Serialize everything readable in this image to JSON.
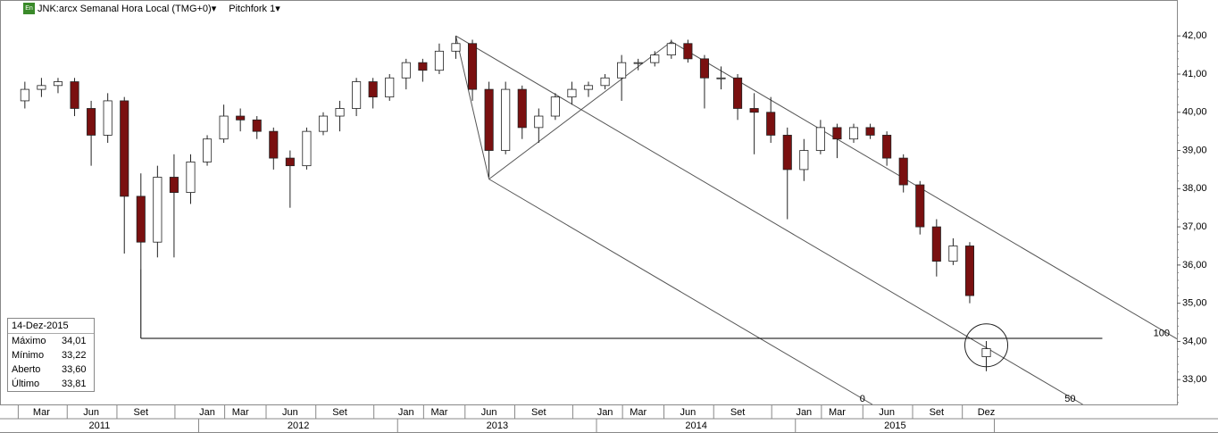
{
  "header": {
    "symbol": "JNK:arcx Semanal Hora Local (TMG+0)▾",
    "study": "Pitchfork 1▾",
    "icon": "En"
  },
  "info_box": {
    "date": "14-Dez-2015",
    "rows": [
      {
        "label": "Máximo",
        "value": "34,01"
      },
      {
        "label": "Mínimo",
        "value": "33,22"
      },
      {
        "label": "Aberto",
        "value": "33,60"
      },
      {
        "label": "Último",
        "value": "33,81"
      }
    ]
  },
  "chart_data": {
    "type": "candlestick",
    "x": [
      "2011-02",
      "2011-03",
      "2011-04",
      "2011-05",
      "2011-06",
      "2011-07",
      "2011-08",
      "2011-09",
      "2011-10",
      "2011-11",
      "2011-12",
      "2012-01",
      "2012-02",
      "2012-03",
      "2012-04",
      "2012-05",
      "2012-06",
      "2012-07",
      "2012-08",
      "2012-09",
      "2012-10",
      "2012-11",
      "2012-12",
      "2013-01",
      "2013-02",
      "2013-03",
      "2013-04",
      "2013-05",
      "2013-06",
      "2013-07",
      "2013-08",
      "2013-09",
      "2013-10",
      "2013-11",
      "2013-12",
      "2014-01",
      "2014-02",
      "2014-03",
      "2014-04",
      "2014-05",
      "2014-06",
      "2014-07",
      "2014-08",
      "2014-09",
      "2014-10",
      "2014-11",
      "2014-12",
      "2015-01",
      "2015-02",
      "2015-03",
      "2015-04",
      "2015-05",
      "2015-06",
      "2015-07",
      "2015-08",
      "2015-09",
      "2015-10",
      "2015-11",
      "2015-12"
    ],
    "open": [
      40.3,
      40.6,
      40.7,
      40.8,
      40.1,
      39.4,
      40.3,
      37.8,
      36.6,
      38.3,
      37.9,
      38.7,
      39.3,
      39.9,
      39.8,
      39.5,
      38.8,
      38.6,
      39.5,
      39.9,
      40.1,
      40.8,
      40.4,
      40.9,
      41.3,
      41.1,
      41.6,
      41.8,
      40.6,
      39.0,
      40.6,
      39.6,
      39.9,
      40.4,
      40.6,
      40.7,
      40.9,
      41.3,
      41.3,
      41.5,
      41.8,
      41.4,
      40.9,
      40.9,
      40.1,
      40.0,
      39.4,
      38.5,
      39.0,
      39.6,
      39.3,
      39.6,
      39.4,
      38.8,
      38.1,
      37.0,
      36.1,
      36.5,
      33.6
    ],
    "high": [
      40.8,
      40.9,
      40.9,
      40.9,
      40.3,
      40.5,
      40.4,
      38.4,
      38.6,
      38.9,
      38.9,
      39.4,
      40.2,
      40.1,
      39.9,
      39.6,
      39.0,
      39.6,
      40.0,
      40.3,
      40.9,
      40.9,
      41.0,
      41.4,
      41.4,
      41.8,
      42.0,
      41.9,
      40.8,
      40.8,
      40.7,
      40.1,
      40.5,
      40.8,
      40.8,
      41.0,
      41.5,
      41.4,
      41.6,
      41.9,
      41.9,
      41.5,
      41.2,
      41.0,
      40.5,
      40.4,
      39.6,
      39.3,
      39.8,
      39.7,
      39.7,
      39.7,
      39.5,
      38.9,
      38.2,
      37.2,
      36.7,
      36.6,
      34.01
    ],
    "low": [
      40.1,
      40.4,
      40.5,
      39.9,
      38.6,
      39.2,
      36.3,
      35.9,
      36.2,
      36.2,
      37.6,
      38.6,
      39.2,
      39.5,
      39.3,
      38.5,
      37.5,
      38.5,
      39.4,
      39.5,
      39.9,
      40.1,
      40.3,
      40.6,
      40.8,
      41.0,
      41.4,
      40.3,
      38.3,
      38.9,
      39.3,
      39.2,
      39.8,
      40.2,
      40.4,
      40.6,
      40.3,
      41.1,
      41.2,
      41.4,
      41.3,
      40.1,
      40.6,
      39.8,
      38.9,
      39.2,
      37.2,
      38.2,
      38.9,
      38.8,
      39.2,
      39.3,
      38.6,
      37.9,
      36.8,
      35.7,
      36.0,
      35.0,
      33.22
    ],
    "close": [
      40.6,
      40.7,
      40.8,
      40.1,
      39.4,
      40.3,
      37.8,
      36.6,
      38.3,
      37.9,
      38.7,
      39.3,
      39.9,
      39.8,
      39.5,
      38.8,
      38.6,
      39.5,
      39.9,
      40.1,
      40.8,
      40.4,
      40.9,
      41.3,
      41.1,
      41.6,
      41.8,
      40.6,
      39.0,
      40.6,
      39.6,
      39.9,
      40.4,
      40.6,
      40.7,
      40.9,
      41.3,
      41.3,
      41.5,
      41.8,
      41.4,
      40.9,
      40.9,
      40.1,
      40.0,
      39.4,
      38.5,
      39.0,
      39.6,
      39.3,
      39.6,
      39.4,
      38.8,
      38.1,
      37.0,
      36.1,
      36.5,
      35.2,
      33.81
    ],
    "up_color": "#ffffff",
    "down_color": "#7a1010",
    "outline_color": "#222222",
    "xlim": [
      "2011-01",
      "2016-12"
    ],
    "ylim": [
      32.35,
      42.94
    ],
    "yticks": [
      {
        "value": 33,
        "label": "33,00"
      },
      {
        "value": 34,
        "label": "34,00"
      },
      {
        "value": 35,
        "label": "35,00"
      },
      {
        "value": 36,
        "label": "36,00"
      },
      {
        "value": 37,
        "label": "37,00"
      },
      {
        "value": 38,
        "label": "38,00"
      },
      {
        "value": 39,
        "label": "39,00"
      },
      {
        "value": 40,
        "label": "40,00"
      },
      {
        "value": 41,
        "label": "41,00"
      },
      {
        "value": 42,
        "label": "42,00"
      }
    ],
    "xticks": [
      {
        "value": "2011-03",
        "label": "Mar"
      },
      {
        "value": "2011-06",
        "label": "Jun"
      },
      {
        "value": "2011-09",
        "label": "Set"
      },
      {
        "value": "2012-01",
        "label": "Jan"
      },
      {
        "value": "2012-03",
        "label": "Mar"
      },
      {
        "value": "2012-06",
        "label": "Jun"
      },
      {
        "value": "2012-09",
        "label": "Set"
      },
      {
        "value": "2013-01",
        "label": "Jan"
      },
      {
        "value": "2013-03",
        "label": "Mar"
      },
      {
        "value": "2013-06",
        "label": "Jun"
      },
      {
        "value": "2013-09",
        "label": "Set"
      },
      {
        "value": "2014-01",
        "label": "Jan"
      },
      {
        "value": "2014-03",
        "label": "Mar"
      },
      {
        "value": "2014-06",
        "label": "Jun"
      },
      {
        "value": "2014-09",
        "label": "Set"
      },
      {
        "value": "2015-01",
        "label": "Jan"
      },
      {
        "value": "2015-03",
        "label": "Mar"
      },
      {
        "value": "2015-06",
        "label": "Jun"
      },
      {
        "value": "2015-09",
        "label": "Set"
      },
      {
        "value": "2015-12",
        "label": "Dez"
      }
    ],
    "years": [
      "2011",
      "2012",
      "2013",
      "2014",
      "2015"
    ],
    "horizontal_line": {
      "from": "2011-09",
      "to": "2016-07",
      "price": 34.08,
      "anchor_price": 35.9
    },
    "circle": {
      "x": "2015-12",
      "price": 33.9
    },
    "pitchfork": {
      "pivots": [
        {
          "x": "2013-06",
          "price": 38.25,
          "label": "0"
        },
        {
          "x": "2013-04",
          "price": 42.0,
          "label": "50"
        },
        {
          "x": "2014-05",
          "price": 41.85,
          "label": "100"
        }
      ]
    }
  }
}
